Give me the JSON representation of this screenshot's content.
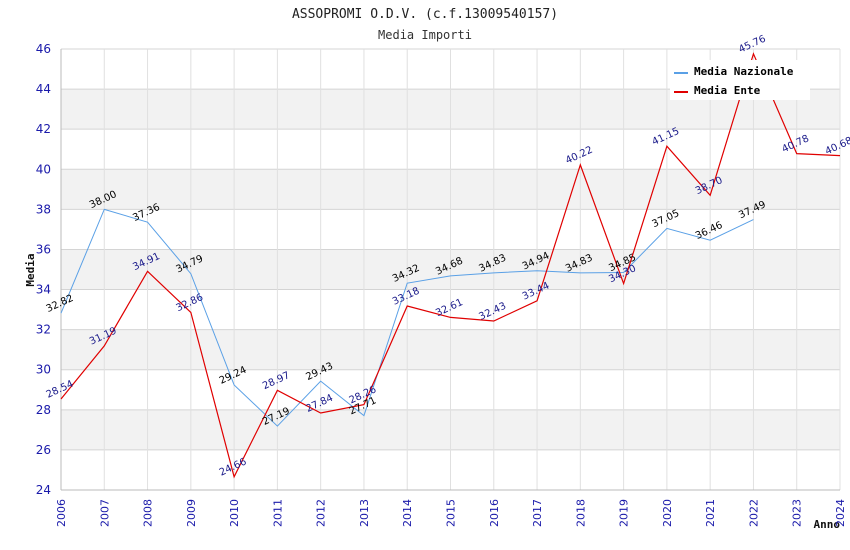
{
  "chart_data": {
    "type": "line",
    "title": "ASSOPROMI O.D.V. (c.f.13009540157)",
    "subtitle": "Media Importi",
    "xlabel": "Anno",
    "ylabel": "Media",
    "ylim": [
      24,
      46
    ],
    "yticks": [
      "24",
      "26",
      "28",
      "30",
      "32",
      "34",
      "36",
      "38",
      "40",
      "42",
      "44",
      "46"
    ],
    "x": [
      "2006",
      "2007",
      "2008",
      "2009",
      "2010",
      "2011",
      "2012",
      "2013",
      "2014",
      "2015",
      "2016",
      "2017",
      "2018",
      "2019",
      "2020",
      "2021",
      "2022",
      "2023",
      "2024"
    ],
    "legend_position": "top-right",
    "series": [
      {
        "name": "Media Nazionale",
        "color": "#5aa0e6",
        "values": [
          32.82,
          38.0,
          37.36,
          34.79,
          29.24,
          27.19,
          29.43,
          27.71,
          34.32,
          34.68,
          34.83,
          34.94,
          34.83,
          34.85,
          37.05,
          36.46,
          37.49,
          null,
          null
        ],
        "labels": [
          "32.82",
          "38.00",
          "37.36",
          "34.79",
          "29.24",
          "27.19",
          "29.43",
          "27.71",
          "34.32",
          "34.68",
          "34.83",
          "34.94",
          "34.83",
          "34.85",
          "37.05",
          "36.46",
          "37.49",
          "",
          ""
        ]
      },
      {
        "name": "Media Ente",
        "color": "#e00000",
        "values": [
          28.54,
          31.19,
          34.91,
          32.86,
          24.66,
          28.97,
          27.84,
          28.26,
          33.18,
          32.61,
          32.43,
          33.44,
          40.22,
          34.3,
          41.15,
          38.7,
          45.76,
          40.78,
          40.68
        ],
        "labels": [
          "28.54",
          "31.19",
          "34.91",
          "32.86",
          "24.66",
          "28.97",
          "27.84",
          "28.26",
          "33.18",
          "32.61",
          "32.43",
          "33.44",
          "40.22",
          "34.30",
          "41.15",
          "38.70",
          "45.76",
          "40.78",
          "40.68"
        ]
      }
    ]
  }
}
